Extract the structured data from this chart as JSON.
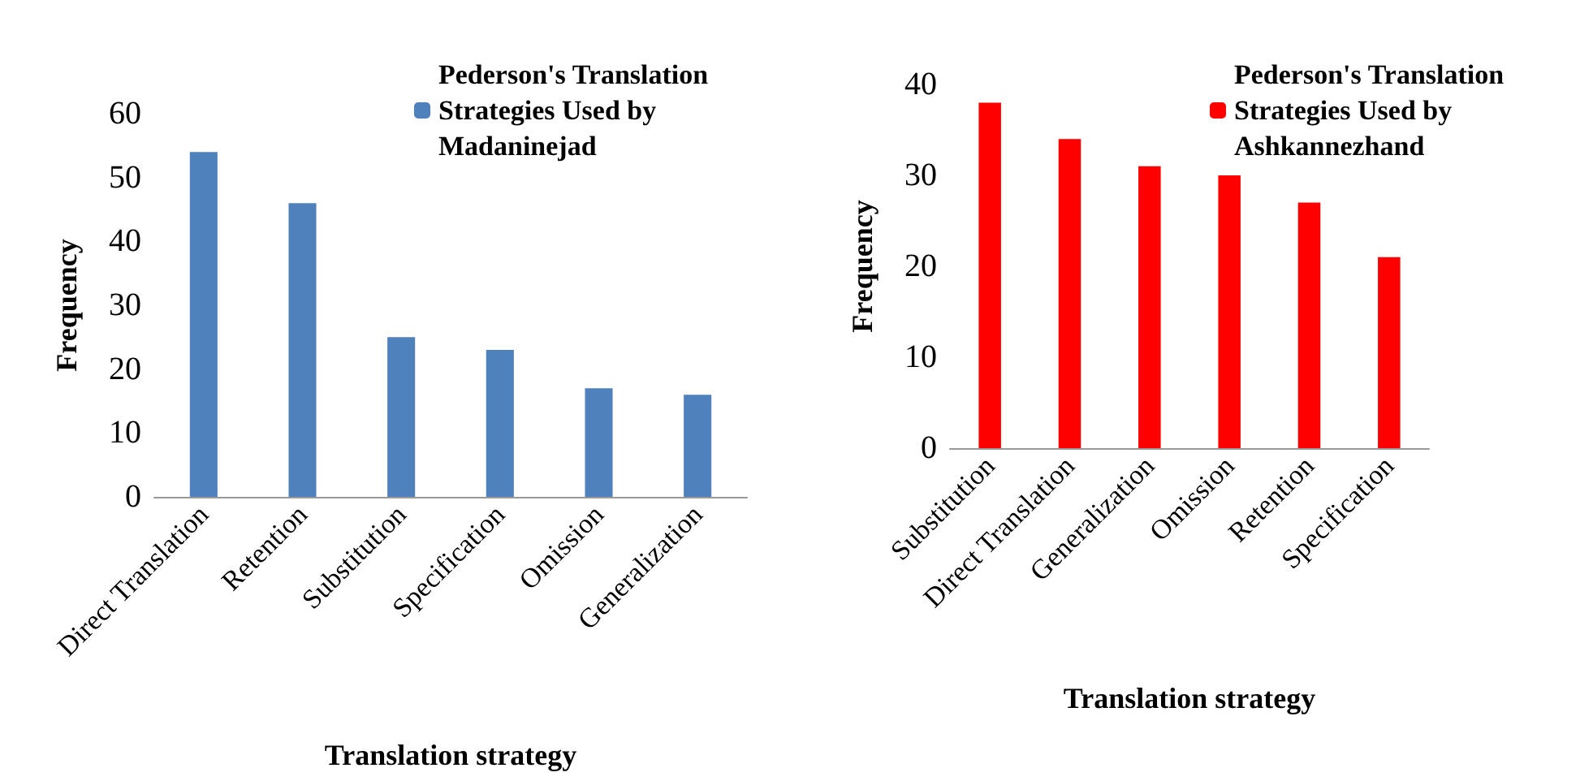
{
  "chart_data": [
    {
      "type": "bar",
      "xlabel": "Translation strategy",
      "ylabel": "Frequency",
      "categories": [
        "Direct Translation",
        "Retention",
        "Substitution",
        "Specification",
        "Omission",
        "Generalization"
      ],
      "series": [
        {
          "name": "Pederson's Translation Strategies Used by Madaninejad",
          "color": "#4f81bd",
          "values": [
            54,
            46,
            25,
            23,
            17,
            16
          ]
        }
      ],
      "ylim": [
        0,
        60
      ],
      "yticks": [
        0,
        10,
        20,
        30,
        40,
        50,
        60
      ],
      "grid": false,
      "legend": "top right"
    },
    {
      "type": "bar",
      "xlabel": "Translation strategy",
      "ylabel": "Frequency",
      "categories": [
        "Substitution",
        "Direct Translation",
        "Generalization",
        "Omission",
        "Retention",
        "Specification"
      ],
      "series": [
        {
          "name": "Pederson's Translation Strategies Used by Ashkannezhand",
          "color": "#ff0000",
          "values": [
            38,
            34,
            31,
            30,
            27,
            21
          ]
        }
      ],
      "ylim": [
        0,
        40
      ],
      "yticks": [
        0,
        10,
        20,
        30,
        40
      ],
      "grid": false,
      "legend": "top right"
    }
  ]
}
